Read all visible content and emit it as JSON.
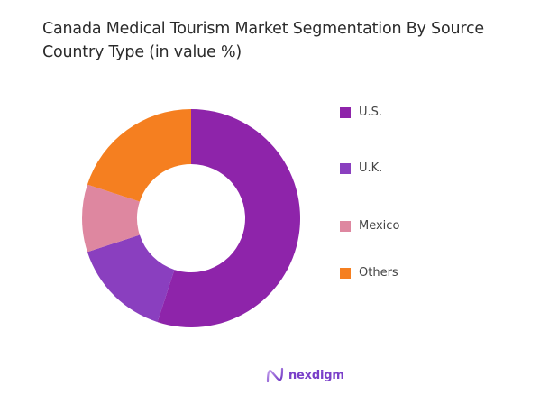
{
  "title": "Canada Medical Tourism Market Segmentation By Source Country Type (in value %)",
  "brand": {
    "name": "nexdigm",
    "color": "#7a3fc9"
  },
  "chart_data": {
    "type": "pie",
    "variant": "donut",
    "title": "Canada Medical Tourism Market Segmentation By Source Country Type (in value %)",
    "categories": [
      "U.S.",
      "U.K.",
      "Mexico",
      "Others"
    ],
    "values": [
      55,
      15,
      10,
      20
    ],
    "colors": [
      "#8e24aa",
      "#8a3fbf",
      "#de87a0",
      "#f57f20"
    ],
    "legend_position": "right",
    "start_angle_deg": 0,
    "direction": "clockwise",
    "center": [
      212,
      242
    ],
    "outer_radius": 121,
    "inner_radius": 60
  },
  "legend": [
    {
      "label": "U.S.",
      "color": "#8e24aa"
    },
    {
      "label": "U.K.",
      "color": "#8a3fbf"
    },
    {
      "label": "Mexico",
      "color": "#de87a0"
    },
    {
      "label": "Others",
      "color": "#f57f20"
    }
  ]
}
